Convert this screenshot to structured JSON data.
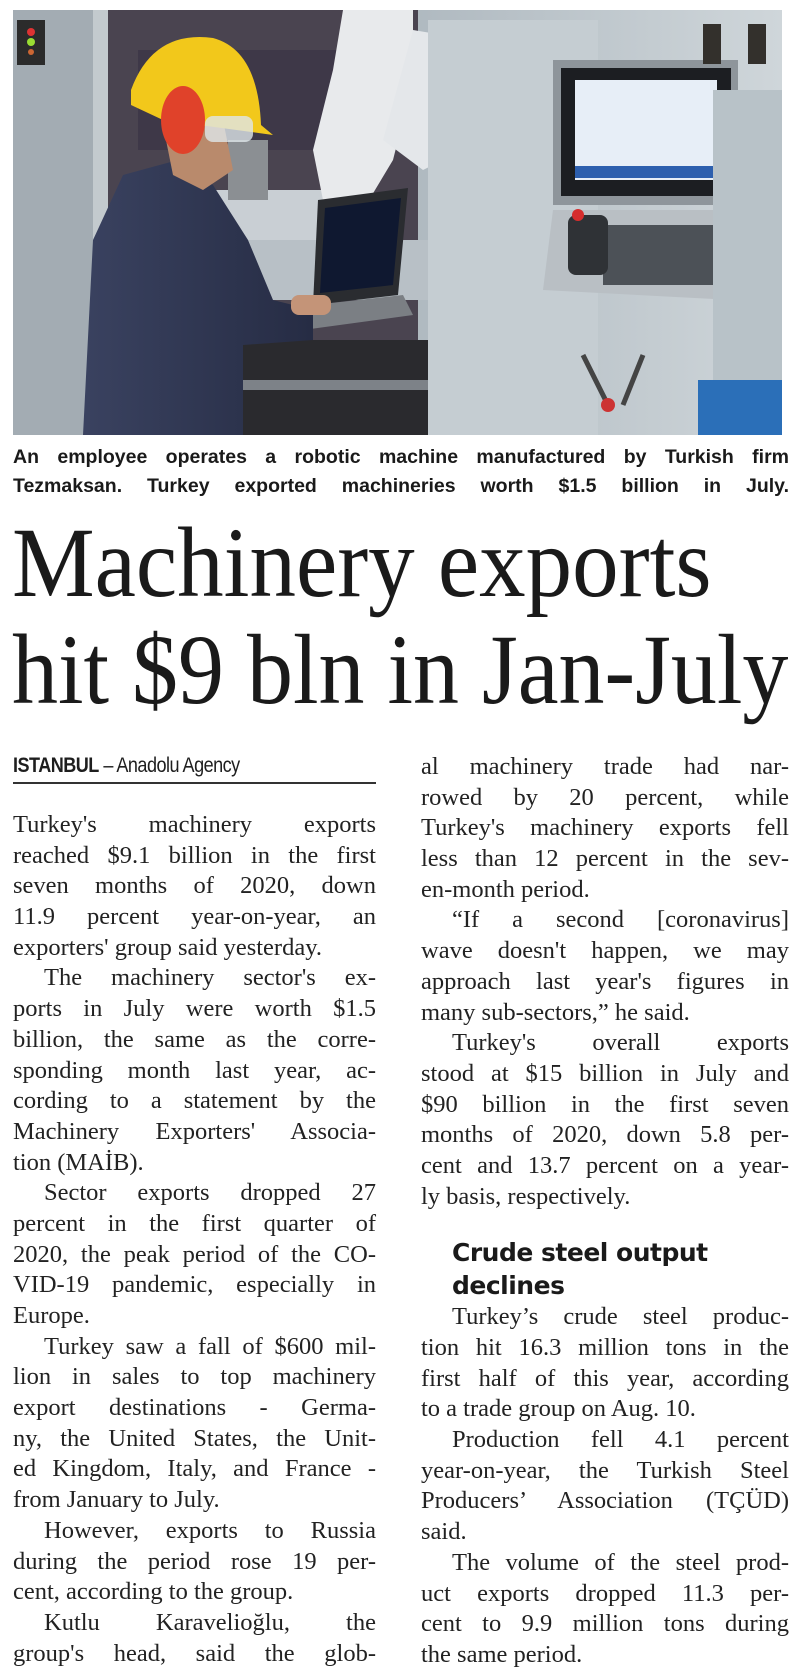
{
  "photo": {
    "alt_icon": "factory-worker-robot-photo",
    "colors": {
      "helmet": "#f2c81b",
      "overall": "#2e3550",
      "earmuff": "#e0422a"
    }
  },
  "caption": {
    "lines": [
      "An employee operates a robotic machine manufactured by Turkish firm",
      "Tezmaksan. Turkey exported machineries worth $1.5 billion in July."
    ]
  },
  "headline": {
    "lines": [
      "Machinery exports",
      "hit $9 bln in Jan-July"
    ]
  },
  "byline": {
    "location": "ISTANBUL",
    "separator": " – ",
    "source": "Anadolu Agency"
  },
  "left_column": [
    {
      "t": "Turkey's machinery exports"
    },
    {
      "t": "reached $9.1 billion in the first"
    },
    {
      "t": "seven months of 2020, down"
    },
    {
      "t": "11.9 percent year-on-year, an"
    },
    {
      "t": "exporters' group said yesterday.",
      "last": true
    },
    {
      "t": "The machinery sector's ex-",
      "ind": true
    },
    {
      "t": "ports in July were worth $1.5"
    },
    {
      "t": "billion, the same as the corre-"
    },
    {
      "t": "sponding month last year, ac-"
    },
    {
      "t": "cording to a statement by the"
    },
    {
      "t": "Machinery Exporters' Associa-"
    },
    {
      "t": "tion (MAİB).",
      "last": true
    },
    {
      "t": "Sector exports dropped 27",
      "ind": true
    },
    {
      "t": "percent in the first quarter of"
    },
    {
      "t": "2020, the peak period of the CO-"
    },
    {
      "t": "VID-19 pandemic, especially in"
    },
    {
      "t": "Europe.",
      "last": true
    },
    {
      "t": "Turkey saw a fall of $600 mil-",
      "ind": true
    },
    {
      "t": "lion in sales to top machinery"
    },
    {
      "t": "export destinations  - Germa-"
    },
    {
      "t": "ny, the United States, the Unit-"
    },
    {
      "t": "ed Kingdom, Italy, and France -"
    },
    {
      "t": "from January to July.",
      "last": true
    },
    {
      "t": "However, exports to Russia",
      "ind": true
    },
    {
      "t": "during the period rose 19 per-"
    },
    {
      "t": "cent, according to the group.",
      "last": true
    },
    {
      "t": "Kutlu Karavelioğlu, the",
      "ind": true
    },
    {
      "t": "group's head, said the glob-"
    }
  ],
  "right_column": [
    {
      "t": "al machinery trade had nar-"
    },
    {
      "t": "rowed by 20 percent, while"
    },
    {
      "t": "Turkey's machinery exports fell"
    },
    {
      "t": "less than 12 percent in the sev-"
    },
    {
      "t": "en-month period.",
      "last": true
    },
    {
      "t": "“If a second [coronavirus]",
      "ind": true
    },
    {
      "t": "wave doesn't happen, we may"
    },
    {
      "t": "approach last year's figures in"
    },
    {
      "t": "many sub-sectors,” he said.",
      "last": true
    },
    {
      "t": "Turkey's overall exports",
      "ind": true
    },
    {
      "t": "stood at $15 billion in July and"
    },
    {
      "t": "$90 billion in the first seven"
    },
    {
      "t": "months of 2020, down 5.8 per-"
    },
    {
      "t": "cent and 13.7 percent on a year-"
    },
    {
      "t": "ly basis, respectively.",
      "last": true
    }
  ],
  "subheading": {
    "lines": [
      "Crude steel output",
      "declines"
    ]
  },
  "right_column_2": [
    {
      "t": "Turkey’s crude steel produc-",
      "ind": true
    },
    {
      "t": "tion hit 16.3 million tons in the"
    },
    {
      "t": "first half of this year, according"
    },
    {
      "t": "to a trade group on Aug. 10.",
      "last": true
    },
    {
      "t": "Production fell 4.1 percent",
      "ind": true
    },
    {
      "t": "year-on-year, the Turkish Steel"
    },
    {
      "t": "Producers’ Association (TÇÜD)"
    },
    {
      "t": "said.",
      "last": true
    },
    {
      "t": "The volume of the steel prod-",
      "ind": true
    },
    {
      "t": "uct exports dropped 11.3 per-"
    },
    {
      "t": "cent to 9.9 million tons during"
    },
    {
      "t": "the same period.",
      "last": true
    }
  ]
}
